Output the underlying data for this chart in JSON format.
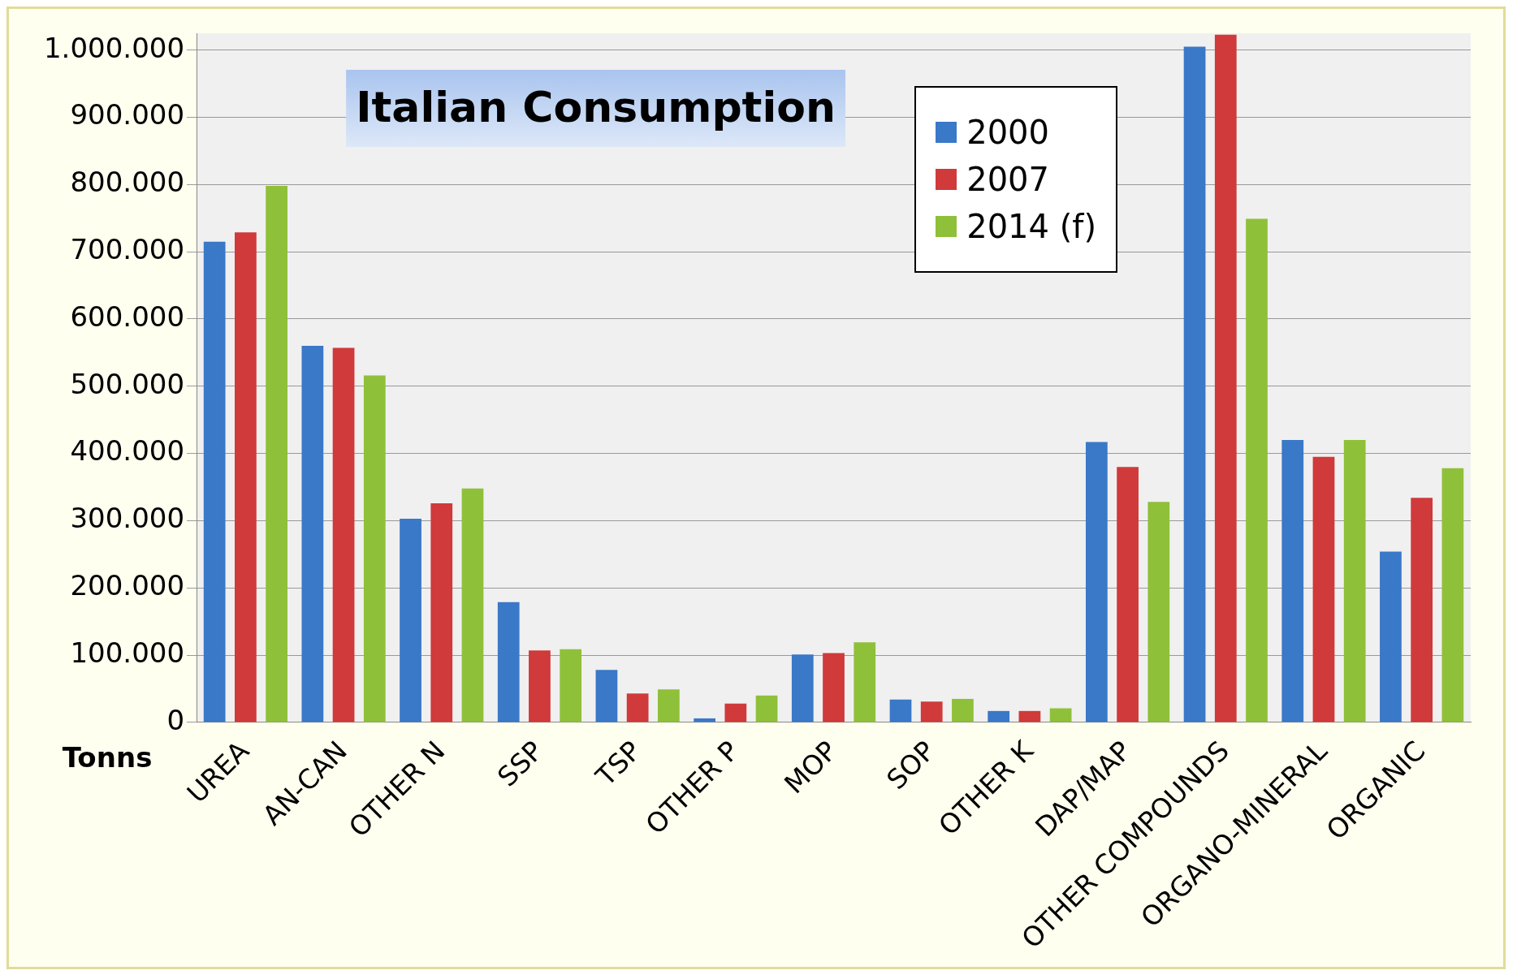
{
  "chart_data": {
    "type": "bar",
    "title": "Italian Consumption",
    "ylabel": "Tonns",
    "categories": [
      "UREA",
      "AN-CAN",
      "OTHER N",
      "SSP",
      "TSP",
      "OTHER P",
      "MOP",
      "SOP",
      "OTHER K",
      "DAP/MAP",
      "OTHER COMPOUNDS",
      "ORGANO-MINERAL",
      "ORGANIC"
    ],
    "series": [
      {
        "name": "2000",
        "color": "#3a78c8",
        "values": [
          715000,
          560000,
          303000,
          179000,
          78000,
          6000,
          101000,
          34000,
          17000,
          417000,
          1005000,
          420000,
          254000
        ]
      },
      {
        "name": "2007",
        "color": "#d03a3a",
        "values": [
          729000,
          557000,
          326000,
          107000,
          43000,
          28000,
          103000,
          31000,
          17000,
          380000,
          1023000,
          395000,
          334000
        ]
      },
      {
        "name": "2014 (f)",
        "color": "#8fc03a",
        "values": [
          798000,
          516000,
          348000,
          109000,
          49000,
          40000,
          119000,
          35000,
          21000,
          328000,
          749000,
          420000,
          378000
        ]
      }
    ],
    "ylim": [
      0,
      1025000
    ],
    "yticks": [
      {
        "value": 0,
        "label": "0"
      },
      {
        "value": 100000,
        "label": "100.000"
      },
      {
        "value": 200000,
        "label": "200.000"
      },
      {
        "value": 300000,
        "label": "300.000"
      },
      {
        "value": 400000,
        "label": "400.000"
      },
      {
        "value": 500000,
        "label": "500.000"
      },
      {
        "value": 600000,
        "label": "600.000"
      },
      {
        "value": 700000,
        "label": "700.000"
      },
      {
        "value": 800000,
        "label": "800.000"
      },
      {
        "value": 900000,
        "label": "900.000"
      },
      {
        "value": 1000000,
        "label": "1.000.000"
      }
    ],
    "grid": "y",
    "legend": "top right"
  }
}
